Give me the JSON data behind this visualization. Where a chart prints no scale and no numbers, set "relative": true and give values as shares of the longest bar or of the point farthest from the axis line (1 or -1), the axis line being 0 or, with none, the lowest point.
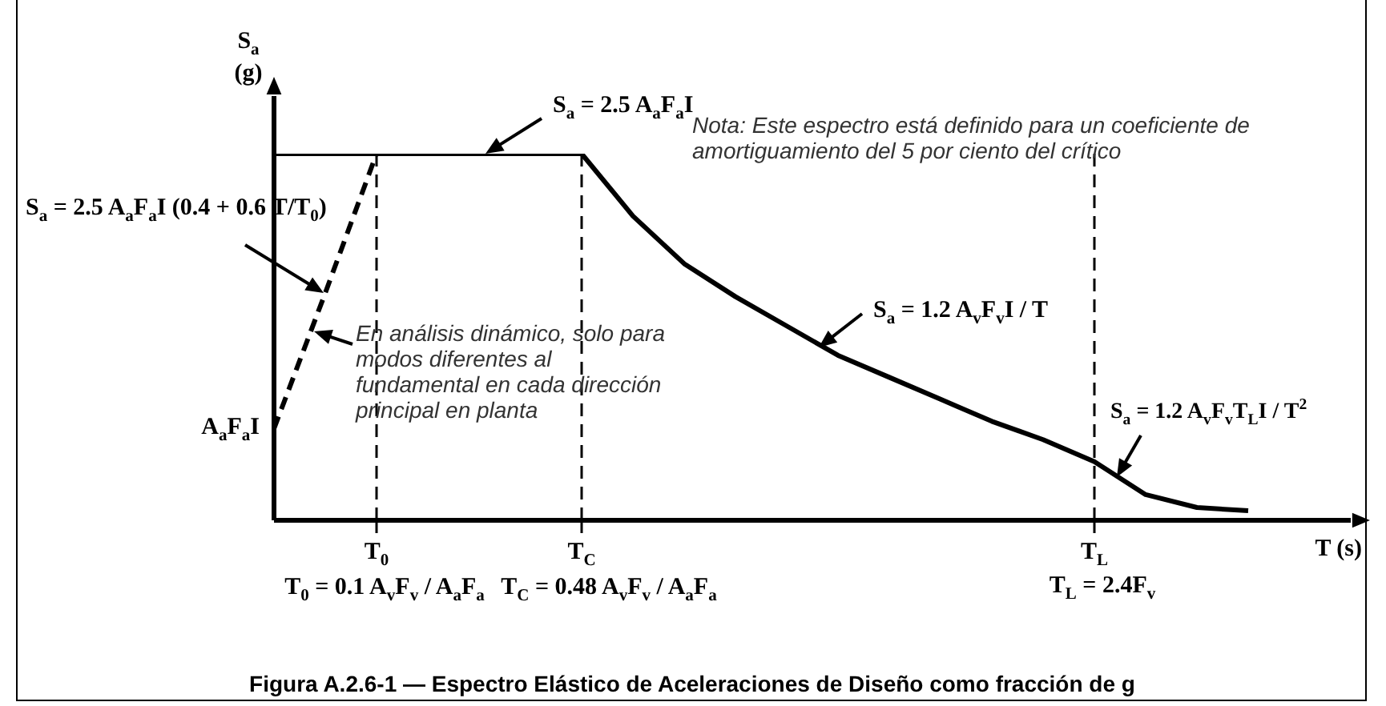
{
  "chart_data": {
    "type": "line",
    "relative": true,
    "xlabel": "T (s)",
    "ylabel": "S$_{a}$ (g)",
    "categories": [
      null,
      null,
      "T$_{0}$",
      null,
      null,
      null,
      "T$_{C}$",
      null,
      null,
      null,
      null,
      null,
      null,
      null,
      null,
      null,
      "T$_{L}$",
      null,
      null,
      null,
      null,
      null
    ],
    "series": [
      {
        "color": "#000000",
        "line_style": "solid",
        "values": [
          1,
          1,
          1,
          1,
          1,
          1,
          1,
          0.83,
          0.7,
          0.61,
          0.53,
          0.45,
          0.39,
          0.33,
          0.27,
          0.22,
          0.16,
          0.07,
          0.035,
          0.026,
          null,
          null
        ]
      },
      {
        "color": "#000000",
        "line_style": "dashed",
        "values": [
          0.25,
          0.62,
          1,
          null,
          null,
          null,
          null,
          null,
          null,
          null,
          null,
          null,
          null,
          null,
          null,
          null,
          null,
          null,
          null,
          null,
          null,
          null
        ]
      }
    ],
    "ref_lines": [
      {
        "axis": "x",
        "value": "T$_{0}$",
        "line_style": "dashed"
      },
      {
        "axis": "x",
        "value": "T$_{C}$",
        "line_style": "dashed"
      },
      {
        "axis": "x",
        "value": "T$_{L}$",
        "line_style": "dashed"
      }
    ],
    "annotations": [
      "S$_{a}$ = 2.5 A$_{a}$F$_{a}$I",
      "S$_{a}$ = 2.5 A$_{a}$F$_{a}$I (0.4 + 0.6 T/T$_{0}$)",
      "En análisis dinámico, solo para modos diferentes al fundamental en cada dirección principal en planta",
      "S$_{a}$ = 1.2 A$_{v}$F$_{v}$I / T",
      "S$_{a}$ = 1.2 A$_{v}$F$_{v}$T$_{L}$I / T$^{2}$",
      "Nota: Este espectro está definido para un coeficiente de amortiguamiento del 5 por ciento del crítico",
      "T$_{0}$ = 0.1 A$_{v}$F$_{v}$ / A$_{a}$F$_{a}$",
      "T$_{C}$ = 0.48 A$_{v}$F$_{v}$ / A$_{a}$F$_{a}$",
      "T$_{L}$ = 2.4F$_{v}$",
      "Figura A.2.6-1 — Espectro Elástico de Aceleraciones de Diseño como fracción de g",
      "A$_{a}$F$_{a}$I"
    ],
    "grid": false,
    "legend": false,
    "marker": "none"
  }
}
